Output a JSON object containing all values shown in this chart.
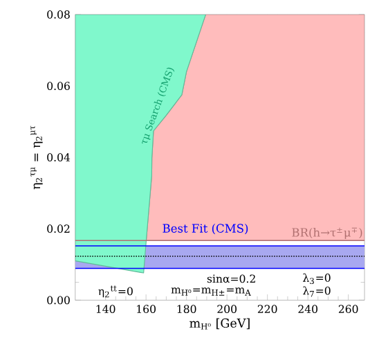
{
  "chart_data": {
    "type": "area",
    "xlabel": "m$_{H⁰}$ [GeV]",
    "ylabel": "η$_{2}$$^{τμ}$ = η$_{2}$$^{μτ}$",
    "xlim": [
      125,
      268
    ],
    "ylim": [
      0,
      0.08
    ],
    "xticks": [
      140,
      160,
      180,
      200,
      220,
      240,
      260
    ],
    "yticks": [
      {
        "value": 0,
        "label": "0.00"
      },
      {
        "value": 0.02,
        "label": "0.02"
      },
      {
        "value": 0.04,
        "label": "0.04"
      },
      {
        "value": 0.06,
        "label": "0.06"
      },
      {
        "value": 0.08,
        "label": "0.08"
      }
    ],
    "series": [
      {
        "color": "#ffbcbc",
        "x": [
          160.1,
          162.8,
          162.9,
          163.7,
          170,
          177.7,
          180,
          189.5,
          268,
          268
        ],
        "values": [
          0.0167,
          0.0348,
          0.0398,
          0.0474,
          0.0518,
          0.0575,
          0.064,
          0.08,
          0.08,
          0.0167
        ]
      },
      {
        "color": "#80f8cc",
        "x": [
          125,
          158.8,
          160.1,
          162.8,
          162.9,
          163.7,
          170,
          177.7,
          180,
          189.5,
          125
        ],
        "values": [
          0.011,
          0.0076,
          0.0167,
          0.0348,
          0.0398,
          0.0474,
          0.0518,
          0.0575,
          0.064,
          0.08,
          0.08
        ]
      }
    ],
    "bands": [
      {
        "axis": "y",
        "from": 0.0089,
        "to": 0.0152,
        "label": "Best Fit (CMS)",
        "color": "#a8a8f0"
      }
    ],
    "ref_lines": [
      {
        "axis": "y",
        "value": 0.0167,
        "label": "BR(h→τ$^{±}$μ$^{∓}$)",
        "color": "#b07070"
      },
      {
        "axis": "y",
        "value": 0.0123,
        "color": "#000000",
        "line_style": "dotted"
      },
      {
        "axis": "y",
        "value": 0.0152,
        "color": "#0000ff"
      },
      {
        "axis": "y",
        "value": 0.0089,
        "color": "#0000ff"
      }
    ],
    "annotations": [
      "τμ Search (CMS)",
      "sinα=0.2",
      "λ$_{3}$=0",
      "η$_{2}$$^{tt}$=0",
      "m$_{H⁰}$=m$_{H±}$=m$_{A}$",
      "λ$_{7}$=0"
    ],
    "grid": false
  }
}
